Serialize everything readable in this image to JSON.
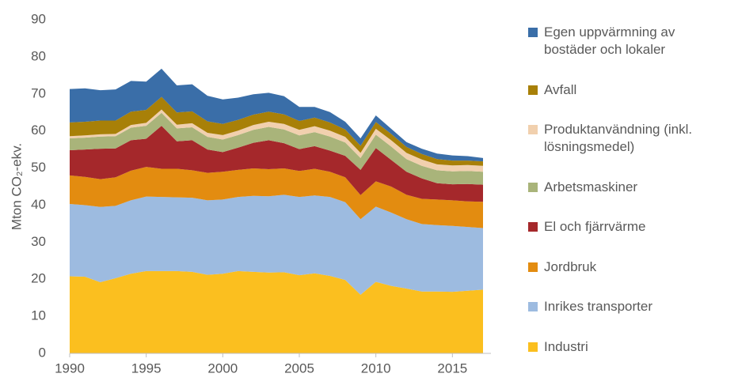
{
  "chart_data": {
    "type": "stacked-area",
    "y_label": "Mton CO₂-ekv.",
    "x": [
      1990,
      1991,
      1992,
      1993,
      1994,
      1995,
      1996,
      1997,
      1998,
      1999,
      2000,
      2001,
      2002,
      2003,
      2004,
      2005,
      2006,
      2007,
      2008,
      2009,
      2010,
      2011,
      2012,
      2013,
      2014,
      2015,
      2016,
      2017
    ],
    "xlim": [
      1990,
      2017
    ],
    "xticks": [
      1990,
      1995,
      2000,
      2005,
      2010,
      2015
    ],
    "ylim": [
      0,
      90
    ],
    "yticks": [
      0,
      10,
      20,
      30,
      40,
      50,
      60,
      70,
      80,
      90
    ],
    "grid": false,
    "legend": "right",
    "series": [
      {
        "name": "Industri",
        "color": "#fbbf1f",
        "values": [
          20.8,
          20.7,
          19.2,
          20.3,
          21.5,
          22.2,
          22.2,
          22.2,
          22.0,
          21.2,
          21.5,
          22.2,
          22.0,
          21.8,
          21.9,
          21.1,
          21.6,
          20.9,
          19.8,
          15.8,
          19.3,
          18.2,
          17.5,
          16.7,
          16.7,
          16.6,
          16.9,
          17.2
        ]
      },
      {
        "name": "Inrikes transporter",
        "color": "#9dbbe0",
        "values": [
          19.5,
          19.3,
          20.3,
          19.5,
          19.8,
          20.1,
          20.0,
          19.9,
          20.0,
          20.1,
          20.0,
          20.0,
          20.5,
          20.6,
          20.9,
          21.1,
          21.0,
          21.3,
          21.0,
          20.4,
          20.3,
          19.8,
          18.7,
          18.2,
          17.9,
          17.8,
          17.2,
          16.6
        ]
      },
      {
        "name": "Jordbruk",
        "color": "#e38c10",
        "values": [
          7.7,
          7.6,
          7.5,
          7.7,
          8.0,
          8.0,
          7.6,
          7.7,
          7.4,
          7.4,
          7.5,
          7.3,
          7.4,
          7.3,
          7.1,
          7.0,
          7.2,
          6.8,
          6.7,
          6.5,
          6.8,
          7.0,
          6.6,
          6.8,
          6.9,
          6.9,
          6.9,
          7.1
        ]
      },
      {
        "name": "El och fjärrvärme",
        "color": "#a5282b",
        "values": [
          6.8,
          7.4,
          8.2,
          7.8,
          8.2,
          7.6,
          11.6,
          7.4,
          8.1,
          6.3,
          5.3,
          6.0,
          6.9,
          7.8,
          6.8,
          5.9,
          6.1,
          5.7,
          5.8,
          6.8,
          9.0,
          7.2,
          6.2,
          5.5,
          4.4,
          4.3,
          4.7,
          4.6
        ]
      },
      {
        "name": "Arbetsmaskiner",
        "color": "#a9b47a",
        "values": [
          3.2,
          3.2,
          3.3,
          3.3,
          3.4,
          3.5,
          3.5,
          3.5,
          3.5,
          3.4,
          3.4,
          3.4,
          3.5,
          3.6,
          3.7,
          3.7,
          3.8,
          3.8,
          3.6,
          3.2,
          3.6,
          3.6,
          3.4,
          3.4,
          3.5,
          3.5,
          3.5,
          3.5
        ]
      },
      {
        "name": "Produktanvändning (inkl. lösningsmedel)",
        "color": "#f1d0ae",
        "values": [
          0.6,
          0.6,
          0.6,
          0.6,
          0.7,
          0.8,
          0.9,
          1.0,
          1.1,
          1.1,
          1.2,
          1.2,
          1.3,
          1.4,
          1.5,
          1.5,
          1.6,
          1.6,
          1.5,
          1.4,
          1.6,
          1.7,
          1.7,
          1.7,
          1.6,
          1.6,
          1.6,
          1.6
        ]
      },
      {
        "name": "Avfall",
        "color": "#a88008",
        "values": [
          3.7,
          3.7,
          3.7,
          3.6,
          3.6,
          3.5,
          3.4,
          3.3,
          3.2,
          3.1,
          3.0,
          2.9,
          2.8,
          2.7,
          2.6,
          2.4,
          2.3,
          2.2,
          2.0,
          1.9,
          1.8,
          1.7,
          1.6,
          1.5,
          1.4,
          1.3,
          1.2,
          1.2
        ]
      },
      {
        "name": "Egen uppvärmning av bostäder och lokaler",
        "color": "#3a6ea8",
        "values": [
          9.0,
          9.0,
          8.2,
          8.4,
          8.3,
          7.6,
          7.6,
          7.3,
          7.3,
          6.9,
          6.6,
          6.0,
          5.5,
          5.1,
          4.9,
          3.8,
          2.9,
          2.8,
          2.1,
          2.0,
          1.8,
          1.4,
          1.3,
          1.4,
          1.5,
          1.4,
          1.2,
          0.9
        ]
      }
    ]
  }
}
